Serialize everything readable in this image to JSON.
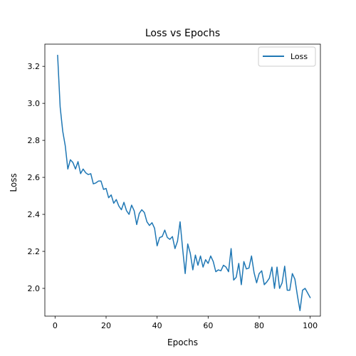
{
  "chart_data": {
    "type": "line",
    "title": "Loss vs Epochs",
    "xlabel": "Epochs",
    "ylabel": "Loss",
    "xlim": [
      -4,
      104
    ],
    "ylim": [
      1.85,
      3.32
    ],
    "x_ticks": [
      0,
      20,
      40,
      60,
      80,
      100
    ],
    "y_ticks": [
      2.0,
      2.2,
      2.4,
      2.6,
      2.8,
      3.0,
      3.2
    ],
    "x_tick_labels": [
      "0",
      "20",
      "40",
      "60",
      "80",
      "100"
    ],
    "y_tick_labels": [
      "2.0",
      "2.2",
      "2.4",
      "2.6",
      "2.8",
      "3.0",
      "3.2"
    ],
    "grid": false,
    "legend_position": "top-right",
    "series": [
      {
        "name": "Loss",
        "color": "#1f77b4",
        "x": [
          1,
          2,
          3,
          4,
          5,
          6,
          7,
          8,
          9,
          10,
          11,
          12,
          13,
          14,
          15,
          16,
          17,
          18,
          19,
          20,
          21,
          22,
          23,
          24,
          25,
          26,
          27,
          28,
          29,
          30,
          31,
          32,
          33,
          34,
          35,
          36,
          37,
          38,
          39,
          40,
          41,
          42,
          43,
          44,
          45,
          46,
          47,
          48,
          49,
          50,
          51,
          52,
          53,
          54,
          55,
          56,
          57,
          58,
          59,
          60,
          61,
          62,
          63,
          64,
          65,
          66,
          67,
          68,
          69,
          70,
          71,
          72,
          73,
          74,
          75,
          76,
          77,
          78,
          79,
          80,
          81,
          82,
          83,
          84,
          85,
          86,
          87,
          88,
          89,
          90,
          91,
          92,
          93,
          94,
          95,
          96,
          97,
          98,
          99,
          100
        ],
        "values": [
          3.26,
          2.98,
          2.85,
          2.77,
          2.645,
          2.695,
          2.68,
          2.645,
          2.685,
          2.62,
          2.645,
          2.625,
          2.615,
          2.62,
          2.565,
          2.57,
          2.58,
          2.58,
          2.535,
          2.54,
          2.49,
          2.505,
          2.46,
          2.48,
          2.445,
          2.425,
          2.465,
          2.42,
          2.4,
          2.45,
          2.42,
          2.345,
          2.405,
          2.425,
          2.41,
          2.36,
          2.34,
          2.355,
          2.325,
          2.23,
          2.275,
          2.28,
          2.315,
          2.275,
          2.265,
          2.28,
          2.215,
          2.255,
          2.36,
          2.215,
          2.08,
          2.24,
          2.19,
          2.1,
          2.18,
          2.125,
          2.175,
          2.115,
          2.155,
          2.135,
          2.175,
          2.145,
          2.09,
          2.1,
          2.095,
          2.125,
          2.115,
          2.09,
          2.215,
          2.045,
          2.06,
          2.135,
          2.02,
          2.145,
          2.105,
          2.11,
          2.175,
          2.085,
          2.03,
          2.08,
          2.095,
          2.02,
          2.035,
          2.055,
          2.115,
          2.0,
          2.115,
          2.0,
          2.03,
          2.12,
          1.99,
          1.99,
          2.08,
          2.05,
          1.96,
          1.88,
          1.99,
          2.0,
          1.975,
          1.95
        ]
      }
    ]
  }
}
